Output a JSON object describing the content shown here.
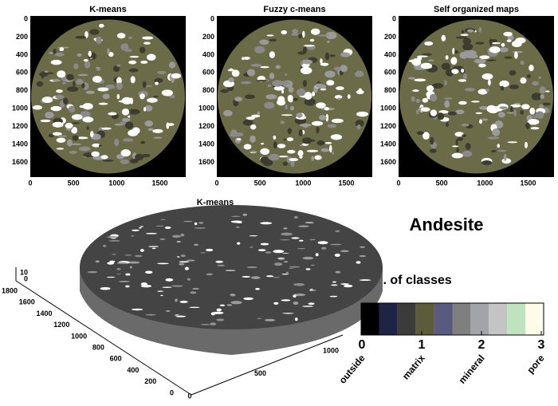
{
  "panels": [
    {
      "title": "K-means",
      "xticks": [
        0,
        500,
        1000,
        1500
      ],
      "yticks": [
        0,
        200,
        400,
        600,
        800,
        1000,
        1200,
        1400,
        1600
      ]
    },
    {
      "title": "Fuzzy c-means",
      "xticks": [
        0,
        500,
        1000,
        1500
      ],
      "yticks": [
        0,
        200,
        400,
        600,
        800,
        1000,
        1200,
        1400,
        1600
      ]
    },
    {
      "title": "Self organized maps",
      "xticks": [
        0,
        500,
        1000,
        1500
      ],
      "yticks": [
        0,
        200,
        400,
        600,
        800,
        1000,
        1200,
        1400,
        1600
      ]
    }
  ],
  "surface": {
    "title": "K-means",
    "yticks": [
      1800,
      1600,
      1400,
      1200,
      1000,
      800,
      600,
      400,
      200,
      0
    ],
    "xticks": [
      0,
      500,
      1000
    ],
    "zticks": [
      10,
      0
    ]
  },
  "rock": "Andesite",
  "legend": {
    "title": "No. of classes",
    "ticks": [
      0,
      1,
      2,
      3
    ],
    "labels": [
      "outside",
      "matrix",
      "mineral",
      "pore"
    ],
    "colors": [
      "#000000",
      "#1f2344",
      "#3b3b3b",
      "#5c5c3a",
      "#5a5a80",
      "#7f7f7f",
      "#a3a3aa",
      "#c4c4c4",
      "#bfe3bf",
      "#fffbea"
    ]
  }
}
